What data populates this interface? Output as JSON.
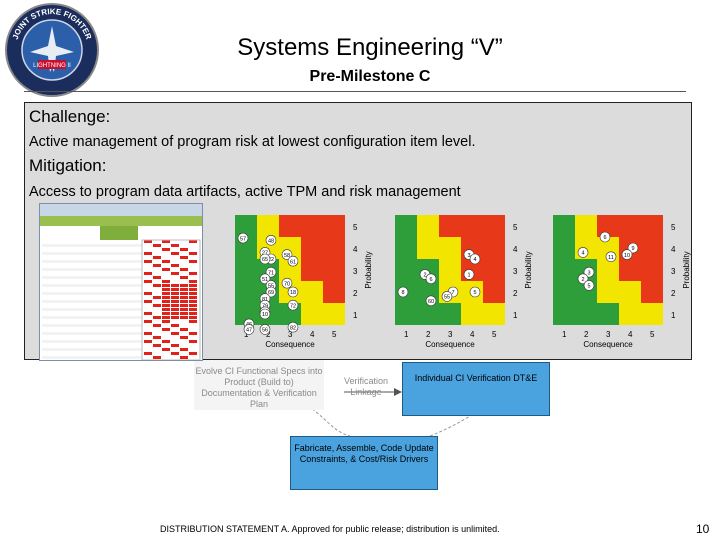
{
  "header": {
    "logo": {
      "ring_text": "JOINT STRIKE FIGHTER",
      "center_text": "LIGHTNING II",
      "colors": {
        "ring": "#1b2d5c",
        "center": "#2b5faa",
        "accent": "#c8102e"
      }
    },
    "title": "Systems Engineering “V”",
    "subtitle": "Pre-Milestone C"
  },
  "panel": {
    "challenge_heading": "Challenge:",
    "challenge_text": "Active management of program risk at lowest configuration item level.",
    "mitigation_heading": "Mitigation:",
    "mitigation_text": "Access to program data artifacts, active TPM and risk management"
  },
  "risk_matrices": [
    {
      "y_ticks": [
        "5",
        "4",
        "3",
        "2",
        "1"
      ],
      "x_ticks": [
        "1",
        "2",
        "3",
        "4",
        "5"
      ],
      "y_label": "Probability",
      "x_label": "Consequence",
      "markers": [
        "57",
        "48",
        "27",
        "22",
        "65",
        "71",
        "51",
        "55",
        "58",
        "61",
        "70",
        "69",
        "81",
        "18",
        "79",
        "72",
        "59",
        "46",
        "10",
        "47",
        "56",
        "82"
      ]
    },
    {
      "y_ticks": [
        "5",
        "4",
        "3",
        "2",
        "1"
      ],
      "x_ticks": [
        "1",
        "2",
        "3",
        "4",
        "5"
      ],
      "y_label": "Probability",
      "x_label": "Consequence",
      "markers": [
        "3",
        "4",
        "2",
        "6",
        "1",
        "7",
        "55",
        "60",
        "8",
        "5"
      ]
    },
    {
      "y_ticks": [
        "5",
        "4",
        "3",
        "2",
        "1"
      ],
      "x_ticks": [
        "1",
        "2",
        "3",
        "4",
        "5"
      ],
      "y_label": "Probability",
      "x_label": "Consequence",
      "markers": [
        "6",
        "9",
        "10",
        "11",
        "4",
        "3",
        "2",
        "5"
      ]
    }
  ],
  "colors": {
    "green": "#2e9e3a",
    "yellow": "#f2e500",
    "red": "#e8381a",
    "sheet_red": "#e0221b"
  },
  "v_diagram": {
    "evolve": "Evolve CI Functional Specs into Product (Build to) Documentation & Verification Plan",
    "verification_linkage": "Verification Linkage",
    "individual_ci": "Individual CI Verification DT&E",
    "fabricate": "Fabricate, Assemble, Code Update Constraints, & Cost/Risk Drivers"
  },
  "footer": {
    "distribution": "DISTRIBUTION STATEMENT A.  Approved for public release; distribution is unlimited.",
    "page_number": "10"
  }
}
